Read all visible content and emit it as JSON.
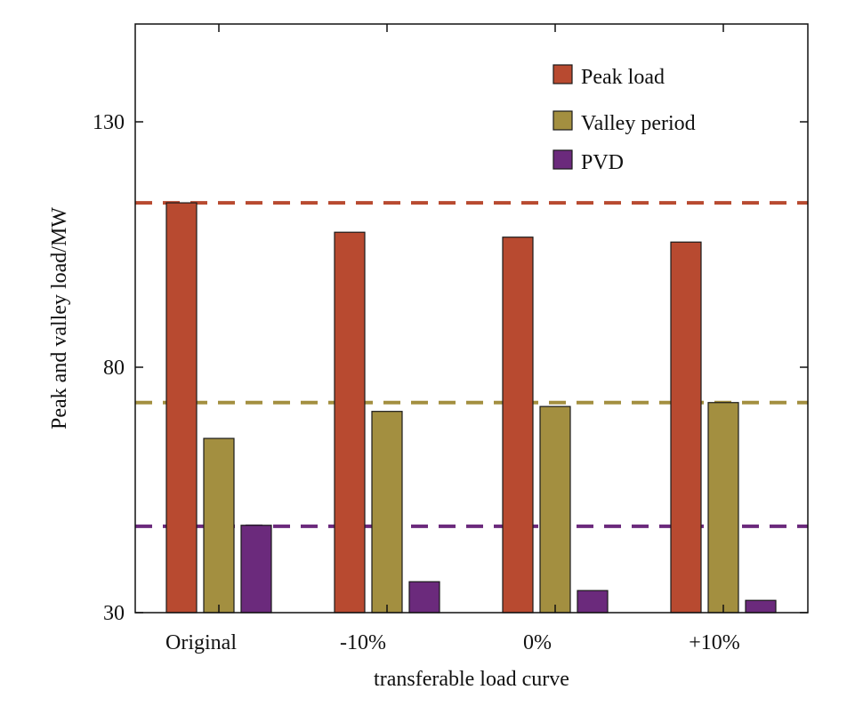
{
  "chart_data": {
    "type": "bar",
    "title": "",
    "xlabel": "transferable load curve",
    "ylabel": "Peak and valley load/MW",
    "categories": [
      "Original",
      "-10%",
      "0%",
      "+10%"
    ],
    "ylim": [
      30,
      130
    ],
    "yticks": [
      30,
      80,
      130
    ],
    "grid": false,
    "legend_position": "top-right",
    "series": [
      {
        "name": "Peak load",
        "color": "#b84a30",
        "values": [
          113.5,
          107.5,
          106.5,
          105.5
        ]
      },
      {
        "name": "Valley period",
        "color": "#a38f40",
        "values": [
          65.5,
          71.0,
          72.0,
          72.8
        ]
      },
      {
        "name": "PVD",
        "color": "#6b2a7c",
        "values": [
          47.8,
          36.3,
          34.5,
          32.5
        ]
      }
    ],
    "reference_lines": [
      {
        "series": "Peak load",
        "value": 113.5,
        "style": "dashed",
        "color": "#b84a30"
      },
      {
        "series": "Valley period",
        "value": 72.8,
        "style": "dashed",
        "color": "#a38f40"
      },
      {
        "series": "PVD",
        "value": 47.6,
        "style": "dashed",
        "color": "#6b2a7c"
      }
    ]
  }
}
